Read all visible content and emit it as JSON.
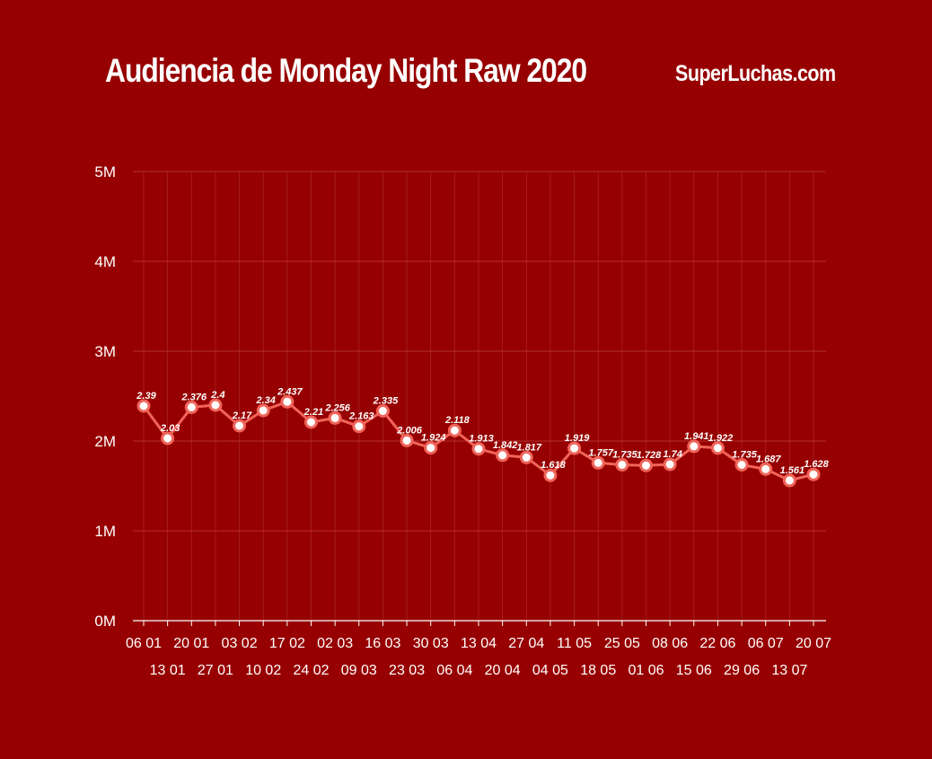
{
  "header": {
    "title": "Audiencia de Monday Night Raw 2020",
    "brand": "SuperLuchas.com"
  },
  "colors": {
    "background": "#970000",
    "line": "#f0655a",
    "marker_fill": "#ffffff",
    "grid": "#b03232",
    "text": "#ffffff"
  },
  "chart_data": {
    "type": "line",
    "title": "Audiencia de Monday Night Raw 2020",
    "xlabel": "",
    "ylabel": "",
    "ylim": [
      0,
      5
    ],
    "yticks": [
      {
        "value": 0,
        "label": "0M"
      },
      {
        "value": 1,
        "label": "1M"
      },
      {
        "value": 2,
        "label": "2M"
      },
      {
        "value": 3,
        "label": "3M"
      },
      {
        "value": 4,
        "label": "4M"
      },
      {
        "value": 5,
        "label": "5M"
      }
    ],
    "grid": true,
    "legend": "none",
    "categories": [
      "06 01",
      "13 01",
      "20 01",
      "27 01",
      "03 02",
      "10 02",
      "17 02",
      "24 02",
      "02 03",
      "09 03",
      "16 03",
      "23 03",
      "30 03",
      "06 04",
      "13 04",
      "20 04",
      "27 04",
      "04 05",
      "11 05",
      "18 05",
      "25 05",
      "01 06",
      "08 06",
      "15 06",
      "22 06",
      "29 06",
      "06 07",
      "13 07",
      "20 07"
    ],
    "series": [
      {
        "values": [
          2.39,
          2.03,
          2.376,
          2.4,
          2.17,
          2.34,
          2.437,
          2.21,
          2.256,
          2.163,
          2.335,
          2.006,
          1.924,
          2.118,
          1.913,
          1.842,
          1.817,
          1.618,
          1.919,
          1.757,
          1.735,
          1.728,
          1.74,
          1.941,
          1.922,
          1.735,
          1.687,
          1.561,
          1.628
        ],
        "labels": [
          "2.39",
          "2.03",
          "2.376",
          "2.4",
          "2.17",
          "2.34",
          "2.437",
          "2.21",
          "2.256",
          "2.163",
          "2.335",
          "2.006",
          "1.924",
          "2.118",
          "1.913",
          "1.842",
          "1.817",
          "1.618",
          "1.919",
          "1.757",
          "1.735",
          "1.728",
          "1.74",
          "1.941",
          "1.922",
          "1.735",
          "1.687",
          "1.561",
          "1.628"
        ]
      }
    ]
  }
}
